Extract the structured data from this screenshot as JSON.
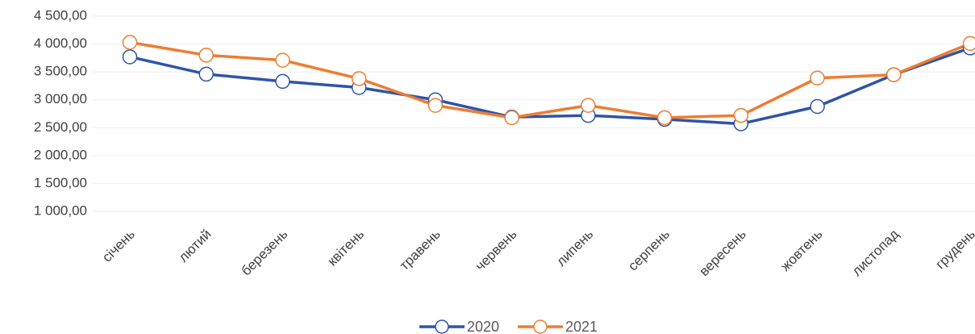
{
  "chart_data": {
    "type": "line",
    "categories": [
      "січень",
      "лютий",
      "березень",
      "квітень",
      "травень",
      "червень",
      "липень",
      "серпень",
      "вересень",
      "жовтень",
      "листопад",
      "грудень"
    ],
    "series": [
      {
        "name": "2020",
        "color": "#2e54a8",
        "values": [
          3770,
          3460,
          3330,
          3220,
          3000,
          2690,
          2720,
          2650,
          2570,
          2880,
          3450,
          3930
        ]
      },
      {
        "name": "2021",
        "color": "#ed7d31",
        "values": [
          4030,
          3800,
          3710,
          3380,
          2900,
          2680,
          2900,
          2680,
          2720,
          3390,
          3450,
          4010
        ]
      }
    ],
    "ylim": [
      1000,
      4500
    ],
    "yticks": [
      {
        "value": 1000,
        "label": "1 000,00"
      },
      {
        "value": 1500,
        "label": "1 500,00"
      },
      {
        "value": 2000,
        "label": "2 000,00"
      },
      {
        "value": 2500,
        "label": "2 500,00"
      },
      {
        "value": 3000,
        "label": "3 000,00"
      },
      {
        "value": 3500,
        "label": "3 500,00"
      },
      {
        "value": 4000,
        "label": "4 000,00"
      },
      {
        "value": 4500,
        "label": "4 500,00"
      }
    ],
    "grid": true,
    "legend": "bottom"
  }
}
